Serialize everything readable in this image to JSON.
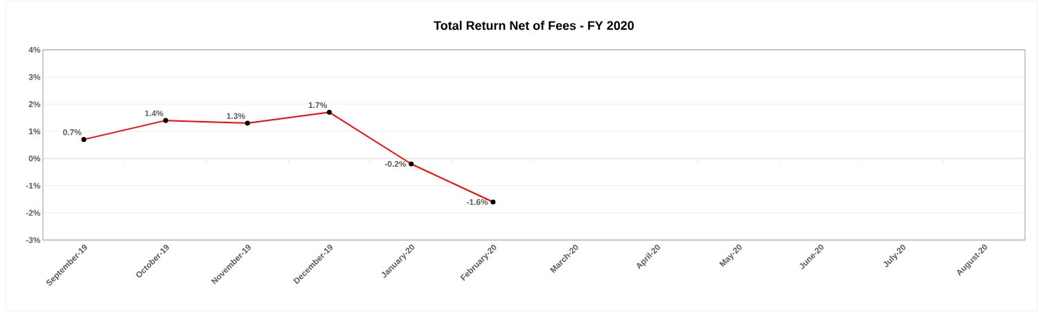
{
  "chart_data": {
    "type": "line",
    "title": "Total Return Net of Fees - FY 2020",
    "categories": [
      "September-19",
      "October-19",
      "November-19",
      "December-19",
      "January-20",
      "February-20",
      "March-20",
      "April-20",
      "May-20",
      "June-20",
      "July-20",
      "August-20"
    ],
    "series": [
      {
        "color": "#ff0000",
        "values": [
          0.7,
          1.4,
          1.3,
          1.7,
          -0.2,
          -1.6,
          null,
          null,
          null,
          null,
          null,
          null
        ],
        "value_labels": [
          "0.7%",
          "1.4%",
          "1.3%",
          "1.7%",
          "-0.2%",
          "-1.6%",
          null,
          null,
          null,
          null,
          null,
          null
        ]
      }
    ],
    "ylim": [
      -3,
      4
    ],
    "yticks": [
      {
        "value": -3,
        "label": "-3%"
      },
      {
        "value": -2,
        "label": "-2%"
      },
      {
        "value": -1,
        "label": "-1%"
      },
      {
        "value": 0,
        "label": "0%"
      },
      {
        "value": 1,
        "label": "1%"
      },
      {
        "value": 2,
        "label": "2%"
      },
      {
        "value": 3,
        "label": "3%"
      },
      {
        "value": 4,
        "label": "4%"
      }
    ],
    "grid": "y",
    "marker": "circle",
    "line_style": "solid",
    "legend": false
  }
}
